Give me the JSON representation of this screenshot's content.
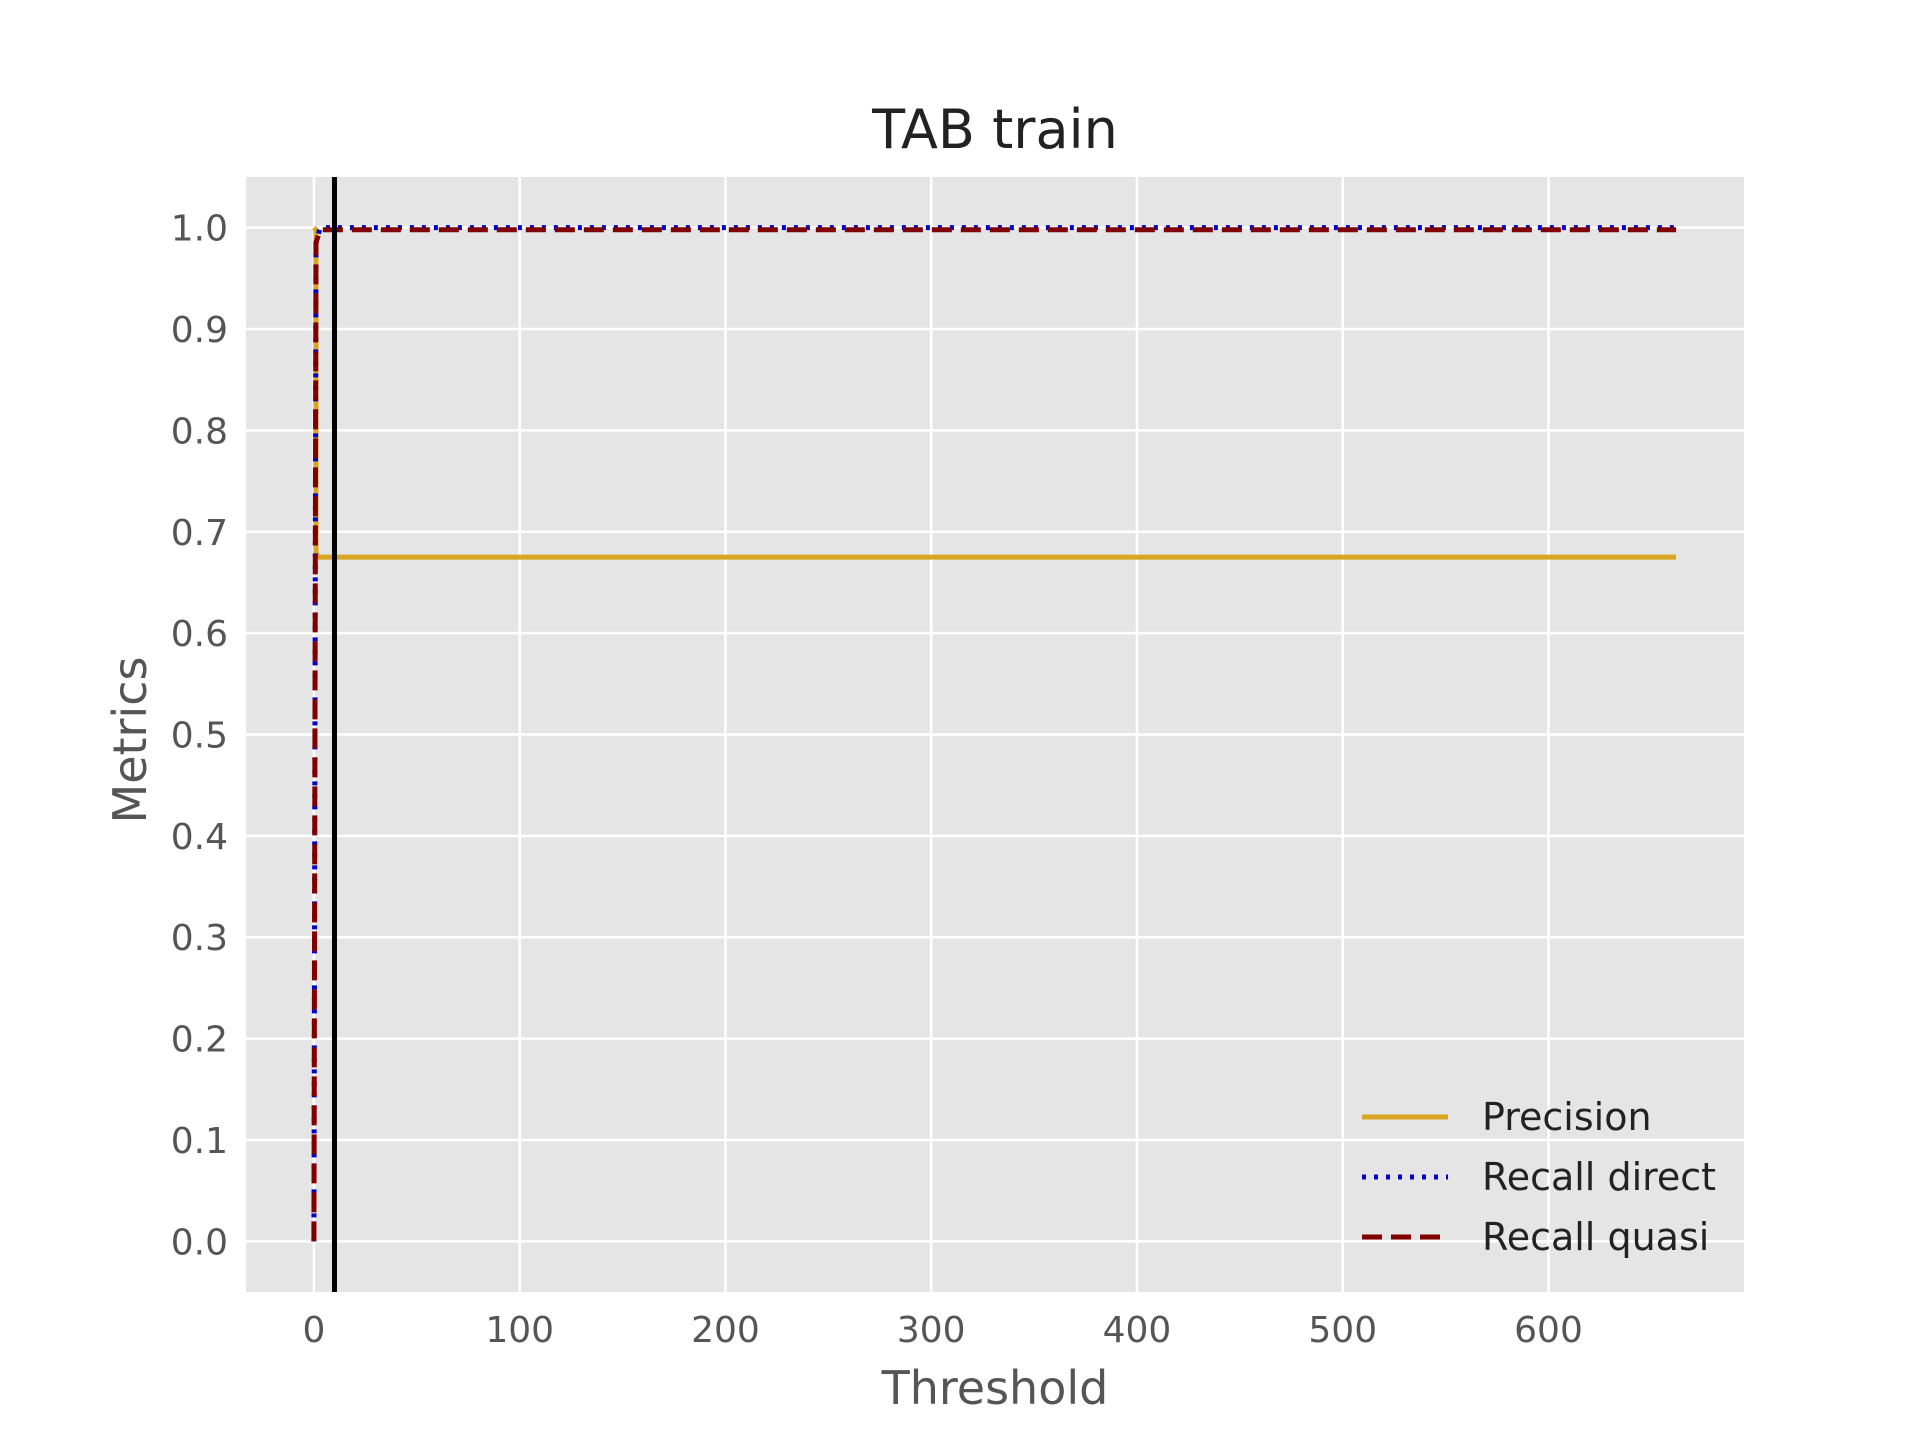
{
  "chart_data": {
    "type": "line",
    "title": "TAB train",
    "xlabel": "Threshold",
    "ylabel": "Metrics",
    "xlim": [
      -33,
      695
    ],
    "ylim": [
      -0.05,
      1.05
    ],
    "xticks": [
      0,
      100,
      200,
      300,
      400,
      500,
      600
    ],
    "xtick_labels": [
      "0",
      "100",
      "200",
      "300",
      "400",
      "500",
      "600"
    ],
    "yticks": [
      0.0,
      0.1,
      0.2,
      0.3,
      0.4,
      0.5,
      0.6,
      0.7,
      0.8,
      0.9,
      1.0
    ],
    "ytick_labels": [
      "0.0",
      "0.1",
      "0.2",
      "0.3",
      "0.4",
      "0.5",
      "0.6",
      "0.7",
      "0.8",
      "0.9",
      "1.0"
    ],
    "grid": true,
    "background": "#e5e5e5",
    "legend_position": "lower-right",
    "series": [
      {
        "name": "Precision",
        "color": "#daa520",
        "style": "solid",
        "x": [
          0,
          0,
          1,
          1,
          2,
          662
        ],
        "y": [
          1.0,
          1.0,
          0.998,
          0.68,
          0.675,
          0.675
        ]
      },
      {
        "name": "Recall direct",
        "color": "#0000cd",
        "style": "dotted",
        "x": [
          0,
          1,
          3,
          662
        ],
        "y": [
          0.0,
          0.985,
          1.0,
          1.0
        ]
      },
      {
        "name": "Recall quasi",
        "color": "#800000",
        "style": "dashed",
        "x": [
          0,
          1,
          3,
          662
        ],
        "y": [
          0.0,
          0.985,
          0.998,
          0.998
        ]
      }
    ],
    "vlines": [
      {
        "x": 10,
        "color": "#000000"
      }
    ]
  }
}
